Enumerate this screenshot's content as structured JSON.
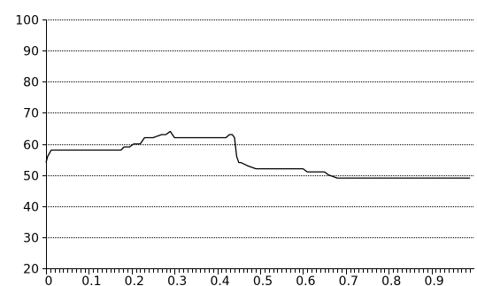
{
  "chart_data": {
    "type": "line",
    "title": "",
    "xlabel": "",
    "ylabel": "",
    "xlim": [
      0,
      1
    ],
    "ylim": [
      20,
      100
    ],
    "grid": true,
    "legend": "none",
    "x_ticks": [
      0,
      0.1,
      0.2,
      0.3,
      0.4,
      0.5,
      0.6,
      0.7,
      0.8,
      0.9
    ],
    "x_tick_labels": [
      "0",
      "0.1",
      "0.2",
      "0.3",
      "0.4",
      "0.5",
      "0.6",
      "0.7",
      "0.8",
      "0.9"
    ],
    "y_ticks": [
      20,
      30,
      40,
      50,
      60,
      70,
      80,
      90,
      100
    ],
    "y_tick_labels": [
      "20",
      "30",
      "40",
      "50",
      "60",
      "70",
      "80",
      "90",
      "100"
    ],
    "colors": {
      "line": "#000000",
      "grid": "#000000",
      "axis": "#000000"
    },
    "series": [
      {
        "x": [
          0.0,
          0.004,
          0.008,
          0.012,
          0.05,
          0.1,
          0.15,
          0.175,
          0.182,
          0.195,
          0.205,
          0.22,
          0.23,
          0.24,
          0.25,
          0.26,
          0.27,
          0.28,
          0.285,
          0.29,
          0.295,
          0.3,
          0.31,
          0.35,
          0.4,
          0.42,
          0.428,
          0.435,
          0.44,
          0.445,
          0.45,
          0.455,
          0.47,
          0.49,
          0.5,
          0.55,
          0.6,
          0.61,
          0.65,
          0.66,
          0.68,
          0.7,
          0.75,
          0.8,
          0.9,
          0.99
        ],
        "y": [
          54,
          56,
          57,
          58,
          58,
          58,
          58,
          58,
          59,
          59,
          60,
          60,
          62,
          62,
          62,
          62.5,
          63,
          63,
          63.5,
          64,
          63,
          62,
          62,
          62,
          62,
          62,
          63,
          63,
          62,
          56,
          54,
          54,
          53,
          52,
          52,
          52,
          52,
          51,
          51,
          50,
          49,
          49,
          49,
          49,
          49,
          49
        ]
      }
    ]
  }
}
